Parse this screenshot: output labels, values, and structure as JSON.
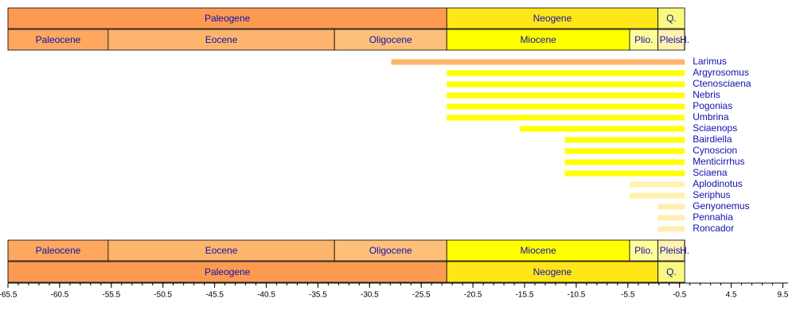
{
  "chart_data": {
    "type": "timeline",
    "xlim": [
      -65.5,
      10
    ],
    "xticks": [
      -65.5,
      -60.5,
      -55.5,
      -50.5,
      -45.5,
      -40.5,
      -35.5,
      -30.5,
      -25.5,
      -20.5,
      -15.5,
      -10.5,
      -5.5,
      -0.5,
      4.5,
      9.5
    ],
    "minor_tick_step": 1,
    "periods": [
      {
        "name": "Paleogene",
        "start": -65.5,
        "end": -23.03,
        "color": "#fd9a52"
      },
      {
        "name": "Neogene",
        "start": -23.03,
        "end": -2.588,
        "color": "#ffe619"
      },
      {
        "name": "Q.",
        "start": -2.588,
        "end": 0,
        "color": "#f9f97f"
      }
    ],
    "epochs": [
      {
        "name": "Paleocene",
        "start": -65.5,
        "end": -55.8,
        "color": "#fda75f"
      },
      {
        "name": "Eocene",
        "start": -55.8,
        "end": -33.9,
        "color": "#fdb46c"
      },
      {
        "name": "Oligocene",
        "start": -33.9,
        "end": -23.03,
        "color": "#fdc07a"
      },
      {
        "name": "Miocene",
        "start": -23.03,
        "end": -5.332,
        "color": "#ffff00"
      },
      {
        "name": "Plio.",
        "start": -5.332,
        "end": -2.588,
        "color": "#ffff99"
      },
      {
        "name": "Pleis.",
        "start": -2.588,
        "end": -0.0117,
        "color": "#fff2ae"
      },
      {
        "name": "H.",
        "start": -0.0117,
        "end": 0,
        "color": "#fef2e0"
      }
    ],
    "taxa": [
      {
        "name": "Larimus",
        "start": -28.4,
        "end": 0,
        "color": "#fdb46c"
      },
      {
        "name": "Argyrosomus",
        "start": -23.03,
        "end": 0,
        "color": "#ffff00"
      },
      {
        "name": "Ctenosciaena",
        "start": -23.03,
        "end": 0,
        "color": "#ffff00"
      },
      {
        "name": "Nebris",
        "start": -23.03,
        "end": 0,
        "color": "#ffff00"
      },
      {
        "name": "Pogonias",
        "start": -23.03,
        "end": 0,
        "color": "#ffff00"
      },
      {
        "name": "Umbrina",
        "start": -23.03,
        "end": 0,
        "color": "#ffff00"
      },
      {
        "name": "Sciaenops",
        "start": -15.97,
        "end": 0,
        "color": "#ffff00"
      },
      {
        "name": "Bairdiella",
        "start": -11.608,
        "end": 0,
        "color": "#ffff00"
      },
      {
        "name": "Cynoscion",
        "start": -11.608,
        "end": 0,
        "color": "#ffff00"
      },
      {
        "name": "Menticirrhus",
        "start": -11.608,
        "end": 0,
        "color": "#ffff00"
      },
      {
        "name": "Sciaena",
        "start": -11.608,
        "end": 0,
        "color": "#ffff00"
      },
      {
        "name": "Aplodinotus",
        "start": -5.332,
        "end": 0,
        "color": "#fff2ae"
      },
      {
        "name": "Seriphus",
        "start": -5.332,
        "end": 0,
        "color": "#fff2ae"
      },
      {
        "name": "Genyonemus",
        "start": -2.588,
        "end": 0,
        "color": "#ffeeb0"
      },
      {
        "name": "Pennahia",
        "start": -2.588,
        "end": 0,
        "color": "#ffeeb0"
      },
      {
        "name": "Roncador",
        "start": -2.588,
        "end": 0,
        "color": "#ffeeb0"
      }
    ]
  }
}
